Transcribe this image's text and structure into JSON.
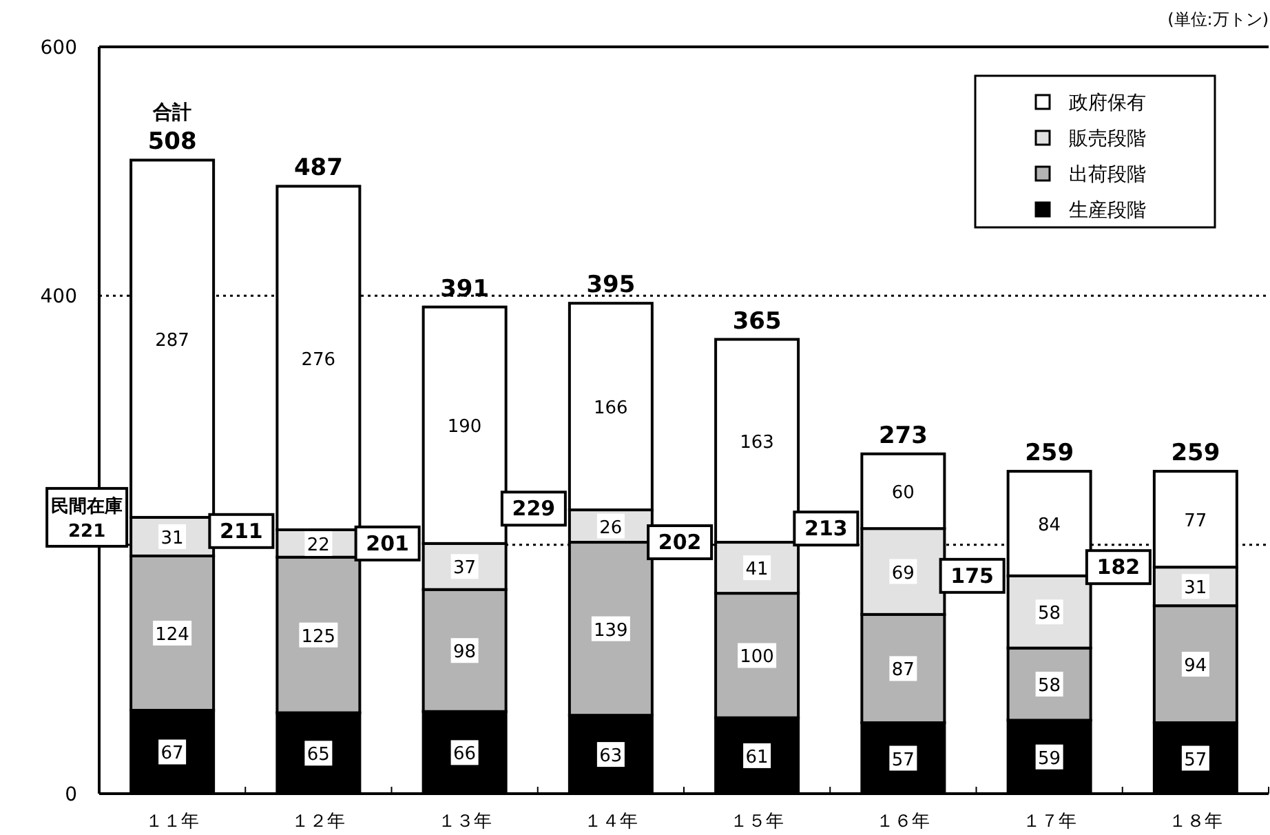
{
  "chart_data": {
    "type": "bar",
    "stacked": true,
    "categories": [
      "１１年",
      "１２年",
      "１３年",
      "１４年",
      "１５年",
      "１６年",
      "１７年",
      "１８年"
    ],
    "series": [
      {
        "name": "生産段階",
        "color": "#000000",
        "values": [
          67,
          65,
          66,
          63,
          61,
          57,
          59,
          57
        ]
      },
      {
        "name": "出荷段階",
        "color": "#b4b4b4",
        "values": [
          124,
          125,
          98,
          139,
          100,
          87,
          58,
          94
        ]
      },
      {
        "name": "販売段階",
        "color": "#e2e2e2",
        "values": [
          31,
          22,
          37,
          26,
          41,
          69,
          58,
          31
        ]
      },
      {
        "name": "政府保有",
        "color": "#ffffff",
        "values": [
          287,
          276,
          190,
          166,
          163,
          60,
          84,
          77
        ]
      }
    ],
    "data_labels": true,
    "totals": [
      "508",
      "487",
      "391",
      "395",
      "365",
      "273",
      "259",
      "259"
    ],
    "ylim": [
      0,
      600
    ],
    "yticks": [
      0,
      {
        "value": 200,
        "label": null
      },
      400,
      600
    ],
    "grid": "y",
    "legend": "top right",
    "annotations": [
      "(単位:万トン)",
      "合計",
      "民間在庫",
      "221",
      {
        "text": "211",
        "x": "１２年",
        "y": 211
      },
      {
        "text": "201",
        "x": "１３年",
        "y": 201
      },
      {
        "text": "229",
        "x": "１４年",
        "y": 229
      },
      {
        "text": "202",
        "x": "１５年",
        "y": 202
      },
      {
        "text": "213",
        "x": "１６年",
        "y": 213
      },
      {
        "text": "175",
        "x": "１７年",
        "y": 175
      },
      {
        "text": "182",
        "x": "１８年",
        "y": 182
      }
    ]
  }
}
